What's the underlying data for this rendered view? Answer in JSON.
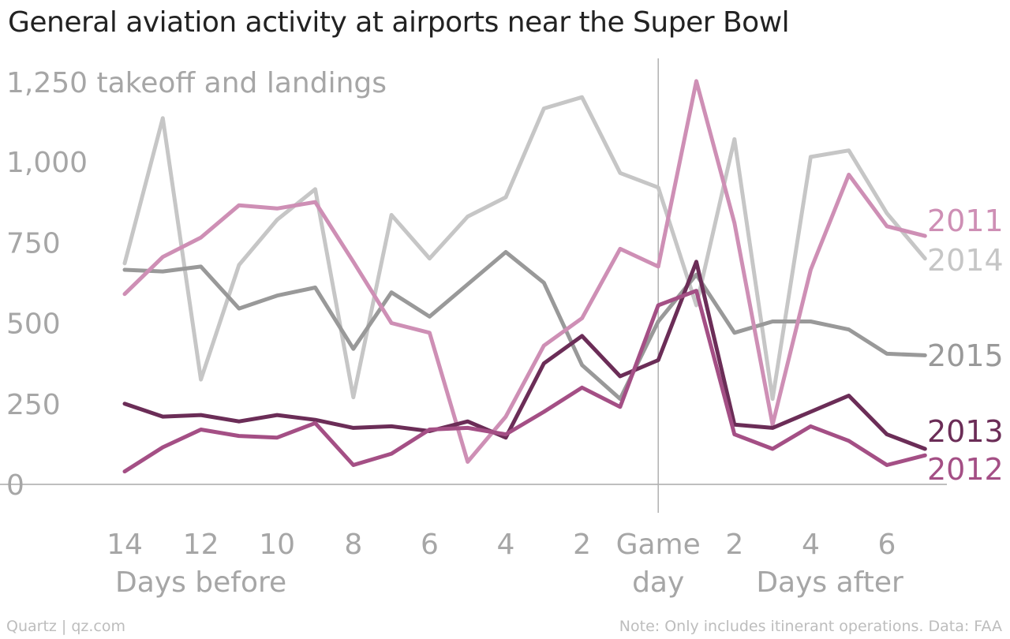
{
  "title": "General aviation activity at airports near the Super Bowl",
  "footer": {
    "source": "Quartz | qz.com",
    "note": "Note: Only includes itinerant operations. Data: FAA"
  },
  "chart_data": {
    "type": "line",
    "title": "General aviation activity at airports near the Super Bowl",
    "unit_label": "1,250 takeoff and landings",
    "y_ticks": [
      "0",
      "250",
      "500",
      "750",
      "1,000"
    ],
    "ylim": [
      0,
      1250
    ],
    "x": [
      -14,
      -13,
      -12,
      -11,
      -10,
      -9,
      -8,
      -7,
      -6,
      -5,
      -4,
      -3,
      -2,
      -1,
      0,
      1,
      2,
      3,
      4,
      5,
      6,
      7
    ],
    "x_ticks": [
      {
        "x": -14,
        "label": "14"
      },
      {
        "x": -12,
        "label": "12"
      },
      {
        "x": -10,
        "label": "10"
      },
      {
        "x": -8,
        "label": "8"
      },
      {
        "x": -6,
        "label": "6"
      },
      {
        "x": -4,
        "label": "4"
      },
      {
        "x": -2,
        "label": "2"
      },
      {
        "x": 0,
        "label": "Game"
      },
      {
        "x": 2,
        "label": "2"
      },
      {
        "x": 4,
        "label": "4"
      },
      {
        "x": 6,
        "label": "6"
      }
    ],
    "x_group_labels": [
      {
        "x": -12,
        "label": "Days before"
      },
      {
        "x": 0,
        "label": "day"
      },
      {
        "x": 4.5,
        "label": "Days after"
      }
    ],
    "reference_line_x": 0,
    "grid": false,
    "legend": "inline labels at right end of lines",
    "series": [
      {
        "name": "2014",
        "color": "#c6c6c6",
        "values": [
          685,
          1135,
          325,
          680,
          820,
          915,
          270,
          835,
          700,
          830,
          890,
          1165,
          1200,
          965,
          920,
          555,
          1070,
          265,
          1015,
          1035,
          840,
          700
        ]
      },
      {
        "name": "2015",
        "color": "#999999",
        "values": [
          665,
          660,
          675,
          545,
          585,
          610,
          420,
          595,
          520,
          620,
          720,
          625,
          370,
          265,
          505,
          650,
          470,
          505,
          505,
          480,
          405,
          400
        ]
      },
      {
        "name": "2011",
        "color": "#ce8fb5",
        "values": [
          590,
          705,
          765,
          865,
          855,
          875,
          690,
          500,
          470,
          70,
          210,
          430,
          515,
          730,
          675,
          1250,
          810,
          185,
          665,
          960,
          800,
          770
        ]
      },
      {
        "name": "2013",
        "color": "#6b2d57",
        "values": [
          250,
          210,
          215,
          195,
          215,
          200,
          175,
          180,
          165,
          195,
          145,
          375,
          460,
          335,
          385,
          690,
          185,
          175,
          225,
          275,
          155,
          110
        ]
      },
      {
        "name": "2012",
        "color": "#a44f85",
        "values": [
          40,
          115,
          170,
          150,
          145,
          190,
          60,
          95,
          170,
          175,
          155,
          225,
          300,
          240,
          555,
          600,
          155,
          110,
          180,
          135,
          60,
          90
        ]
      }
    ]
  }
}
